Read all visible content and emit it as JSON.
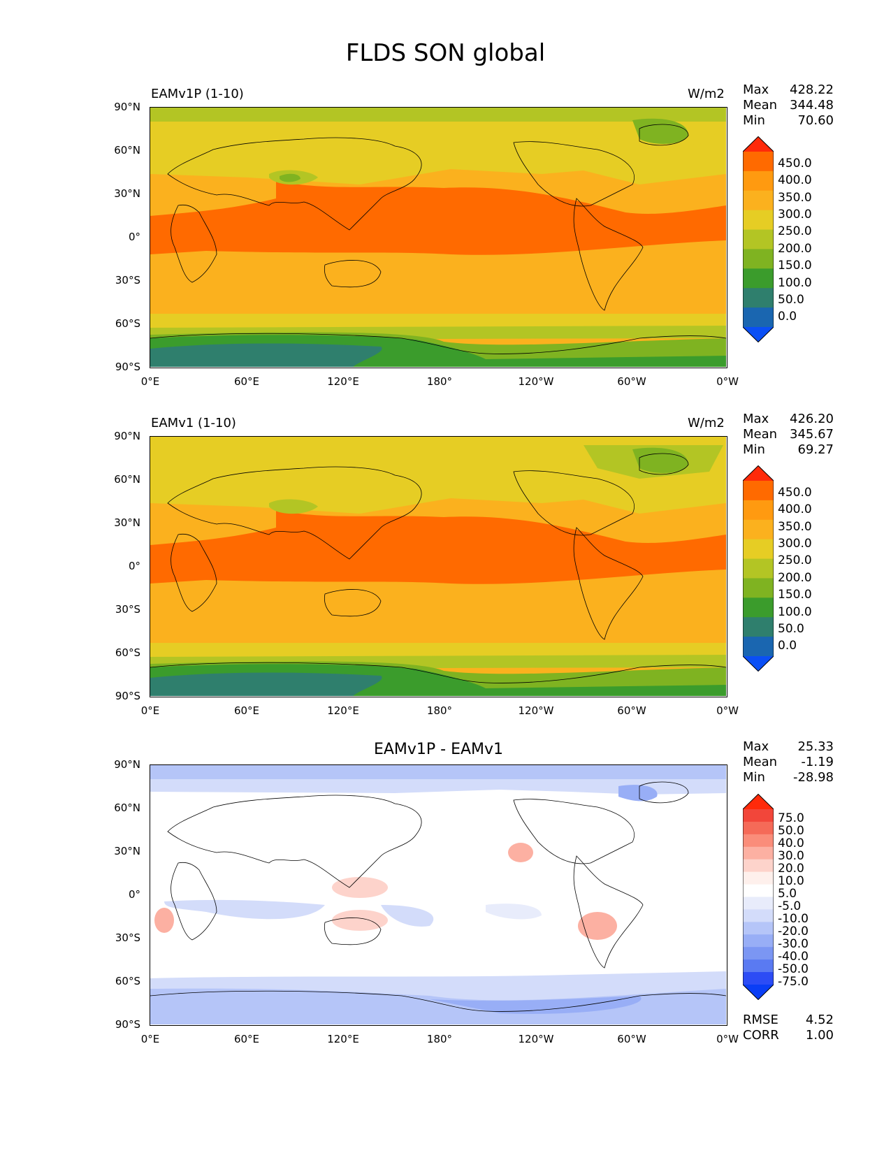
{
  "figure_title": "FLDS SON global",
  "panels": [
    {
      "label": "EAMv1P (1-10)",
      "units": "W/m2",
      "stats": {
        "max_label": "Max",
        "max": "428.22",
        "mean_label": "Mean",
        "mean": "344.48",
        "min_label": "Min",
        "min": "70.60"
      },
      "colorbar_labels": [
        "450.0",
        "400.0",
        "350.0",
        "300.0",
        "250.0",
        "200.0",
        "150.0",
        "100.0",
        "50.0",
        "0.0"
      ]
    },
    {
      "label": "EAMv1 (1-10)",
      "units": "W/m2",
      "stats": {
        "max_label": "Max",
        "max": "426.20",
        "mean_label": "Mean",
        "mean": "345.67",
        "min_label": "Min",
        "min": "69.27"
      },
      "colorbar_labels": [
        "450.0",
        "400.0",
        "350.0",
        "300.0",
        "250.0",
        "200.0",
        "150.0",
        "100.0",
        "50.0",
        "0.0"
      ]
    },
    {
      "label": "EAMv1P - EAMv1",
      "units": "",
      "stats": {
        "max_label": "Max",
        "max": "25.33",
        "mean_label": "Mean",
        "mean": "-1.19",
        "min_label": "Min",
        "min": "-28.98"
      },
      "colorbar_labels": [
        "75.0",
        "50.0",
        "40.0",
        "30.0",
        "20.0",
        "10.0",
        "5.0",
        "-5.0",
        "-10.0",
        "-20.0",
        "-30.0",
        "-40.0",
        "-50.0",
        "-75.0"
      ],
      "extra_stats": {
        "rmse_label": "RMSE",
        "rmse": "4.52",
        "corr_label": "CORR",
        "corr": "1.00"
      }
    }
  ],
  "axes": {
    "yticks": [
      "90°N",
      "60°N",
      "30°N",
      "0°",
      "30°S",
      "60°S",
      "90°S"
    ],
    "xticks": [
      "0°E",
      "60°E",
      "120°E",
      "180°",
      "120°W",
      "60°W",
      "0°W"
    ]
  },
  "colors": {
    "abs_scale": [
      "#ff2a0a",
      "#ff6a00",
      "#ff9a10",
      "#fbb11e",
      "#e6cd24",
      "#b3c524",
      "#7fb321",
      "#3b9c2c",
      "#2f7f6d",
      "#1a66b0",
      "#0a4ff5"
    ],
    "diff_scale": [
      "#ff2a0a",
      "#f2463a",
      "#f56a58",
      "#fa8d7a",
      "#fcb0a2",
      "#fdd3cb",
      "#fef0ec",
      "#ffffff",
      "#e8ecfb",
      "#d3dcfa",
      "#b5c5f8",
      "#98aef6",
      "#7b96f3",
      "#5a7af2",
      "#2c4cf5",
      "#0a3ef5"
    ]
  },
  "chart_data": [
    {
      "type": "heatmap",
      "title": "EAMv1P (1-10)",
      "units": "W/m2",
      "xlabel": "",
      "ylabel": "",
      "x_ticks": [
        "0°E",
        "60°E",
        "120°E",
        "180°",
        "120°W",
        "60°W",
        "0°W"
      ],
      "y_ticks": [
        "90°N",
        "60°N",
        "30°N",
        "0°",
        "30°S",
        "60°S",
        "90°S"
      ],
      "contour_levels": [
        0,
        50,
        100,
        150,
        200,
        250,
        300,
        350,
        400,
        450
      ],
      "max": 428.22,
      "mean": 344.48,
      "min": 70.6,
      "zonal_bands_approx": [
        {
          "lat_range": [
            60,
            90
          ],
          "value": 250
        },
        {
          "lat_range": [
            15,
            60
          ],
          "value": 300
        },
        {
          "lat_range": [
            -15,
            15
          ],
          "value": 400
        },
        {
          "lat_range": [
            -55,
            -15
          ],
          "value": 350
        },
        {
          "lat_range": [
            -65,
            -55
          ],
          "value": 275
        },
        {
          "lat_range": [
            -90,
            -65
          ],
          "value": 125
        }
      ]
    },
    {
      "type": "heatmap",
      "title": "EAMv1 (1-10)",
      "units": "W/m2",
      "xlabel": "",
      "ylabel": "",
      "x_ticks": [
        "0°E",
        "60°E",
        "120°E",
        "180°",
        "120°W",
        "60°W",
        "0°W"
      ],
      "y_ticks": [
        "90°N",
        "60°N",
        "30°N",
        "0°",
        "30°S",
        "60°S",
        "90°S"
      ],
      "contour_levels": [
        0,
        50,
        100,
        150,
        200,
        250,
        300,
        350,
        400,
        450
      ],
      "max": 426.2,
      "mean": 345.67,
      "min": 69.27,
      "zonal_bands_approx": [
        {
          "lat_range": [
            60,
            90
          ],
          "value": 275
        },
        {
          "lat_range": [
            15,
            60
          ],
          "value": 300
        },
        {
          "lat_range": [
            -15,
            15
          ],
          "value": 400
        },
        {
          "lat_range": [
            -55,
            -15
          ],
          "value": 350
        },
        {
          "lat_range": [
            -65,
            -55
          ],
          "value": 275
        },
        {
          "lat_range": [
            -90,
            -65
          ],
          "value": 125
        }
      ]
    },
    {
      "type": "heatmap",
      "title": "EAMv1P - EAMv1",
      "xlabel": "",
      "ylabel": "",
      "x_ticks": [
        "0°E",
        "60°E",
        "120°E",
        "180°",
        "120°W",
        "60°W",
        "0°W"
      ],
      "y_ticks": [
        "90°N",
        "60°N",
        "30°N",
        "0°",
        "30°S",
        "60°S",
        "90°S"
      ],
      "contour_levels": [
        -75,
        -50,
        -40,
        -30,
        -20,
        -10,
        -5,
        5,
        10,
        20,
        30,
        40,
        50,
        75
      ],
      "max": 25.33,
      "mean": -1.19,
      "min": -28.98,
      "rmse": 4.52,
      "corr": 1.0
    }
  ]
}
